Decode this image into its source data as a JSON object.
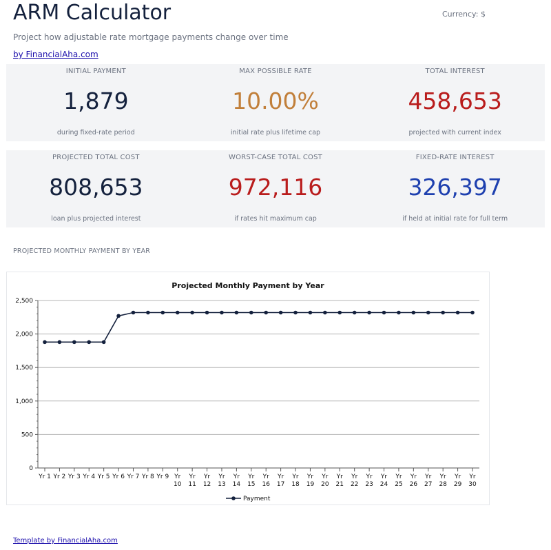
{
  "header": {
    "title": "ARM Calculator",
    "currency": "Currency: $",
    "subtitle": "Project how adjustable rate mortgage payments change over time",
    "byline": "by FinancialAha.com"
  },
  "cards_row1": [
    {
      "label": "INITIAL PAYMENT",
      "value": "1,879",
      "sub": "during fixed-rate period",
      "color": "#14213d"
    },
    {
      "label": "MAX POSSIBLE RATE",
      "value": "10.00%",
      "sub": "initial rate plus lifetime cap",
      "color": "#c17f3a"
    },
    {
      "label": "TOTAL INTEREST",
      "value": "458,653",
      "sub": "projected with current index",
      "color": "#b91c1c"
    }
  ],
  "cards_row2": [
    {
      "label": "PROJECTED TOTAL COST",
      "value": "808,653",
      "sub": "loan plus projected interest",
      "color": "#14213d"
    },
    {
      "label": "WORST-CASE TOTAL COST",
      "value": "972,116",
      "sub": "if rates hit maximum cap",
      "color": "#b91c1c"
    },
    {
      "label": "FIXED-RATE INTEREST",
      "value": "326,397",
      "sub": "if held at initial rate for full term",
      "color": "#1e40af"
    }
  ],
  "section_heading": "PROJECTED MONTHLY PAYMENT BY YEAR",
  "footer": "Template by FinancialAha.com",
  "chart_data": {
    "type": "line",
    "title": "Projected Monthly Payment by Year",
    "xlabel": "",
    "ylabel": "",
    "categories": [
      "Yr 1",
      "Yr 2",
      "Yr 3",
      "Yr 4",
      "Yr 5",
      "Yr 6",
      "Yr 7",
      "Yr 8",
      "Yr 9",
      "Yr 10",
      "Yr 11",
      "Yr 12",
      "Yr 13",
      "Yr 14",
      "Yr 15",
      "Yr 16",
      "Yr 17",
      "Yr 18",
      "Yr 19",
      "Yr 20",
      "Yr 21",
      "Yr 22",
      "Yr 23",
      "Yr 24",
      "Yr 25",
      "Yr 26",
      "Yr 27",
      "Yr 28",
      "Yr 29",
      "Yr 30"
    ],
    "series": [
      {
        "name": "Payment",
        "color": "#14213d",
        "values": [
          1879,
          1879,
          1879,
          1879,
          1879,
          2270,
          2320,
          2320,
          2320,
          2320,
          2320,
          2320,
          2320,
          2320,
          2320,
          2320,
          2320,
          2320,
          2320,
          2320,
          2320,
          2320,
          2320,
          2320,
          2320,
          2320,
          2320,
          2320,
          2320,
          2320
        ]
      }
    ],
    "ylim": [
      0,
      2500
    ],
    "yticks": [
      "0",
      "500",
      "1,000",
      "1,500",
      "2,000",
      "2,500"
    ],
    "grid": true,
    "legend": "bottom"
  }
}
